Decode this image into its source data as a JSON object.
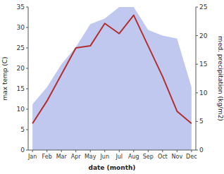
{
  "chart_data": {
    "type": "line",
    "categories": [
      "Jan",
      "Feb",
      "Mar",
      "Apr",
      "May",
      "Jun",
      "Jul",
      "Aug",
      "Sep",
      "Oct",
      "Nov",
      "Dec"
    ],
    "series": [
      {
        "type": "area",
        "axis": "y2",
        "color": "#c0c8f0",
        "values": [
          8.0,
          11.0,
          15.0,
          18.0,
          22.0,
          23.0,
          25.0,
          25.0,
          21.0,
          20.0,
          19.5,
          11.0
        ]
      },
      {
        "type": "line",
        "color": "#b03030",
        "values": [
          6.5,
          12.0,
          18.5,
          25.0,
          25.5,
          31.0,
          28.5,
          33.0,
          25.5,
          18.0,
          9.5,
          6.5
        ]
      }
    ],
    "xlabel": "date (month)",
    "ylabel": "max temp (C)",
    "y2label": "med. precipitation (kg/m2)",
    "ylim": [
      0,
      35
    ],
    "yticks": [
      0,
      5,
      10,
      15,
      20,
      25,
      30,
      35
    ],
    "y2lim": [
      0,
      25
    ],
    "y2ticks": [
      0,
      5,
      10,
      15,
      20,
      25
    ],
    "grid": false
  }
}
